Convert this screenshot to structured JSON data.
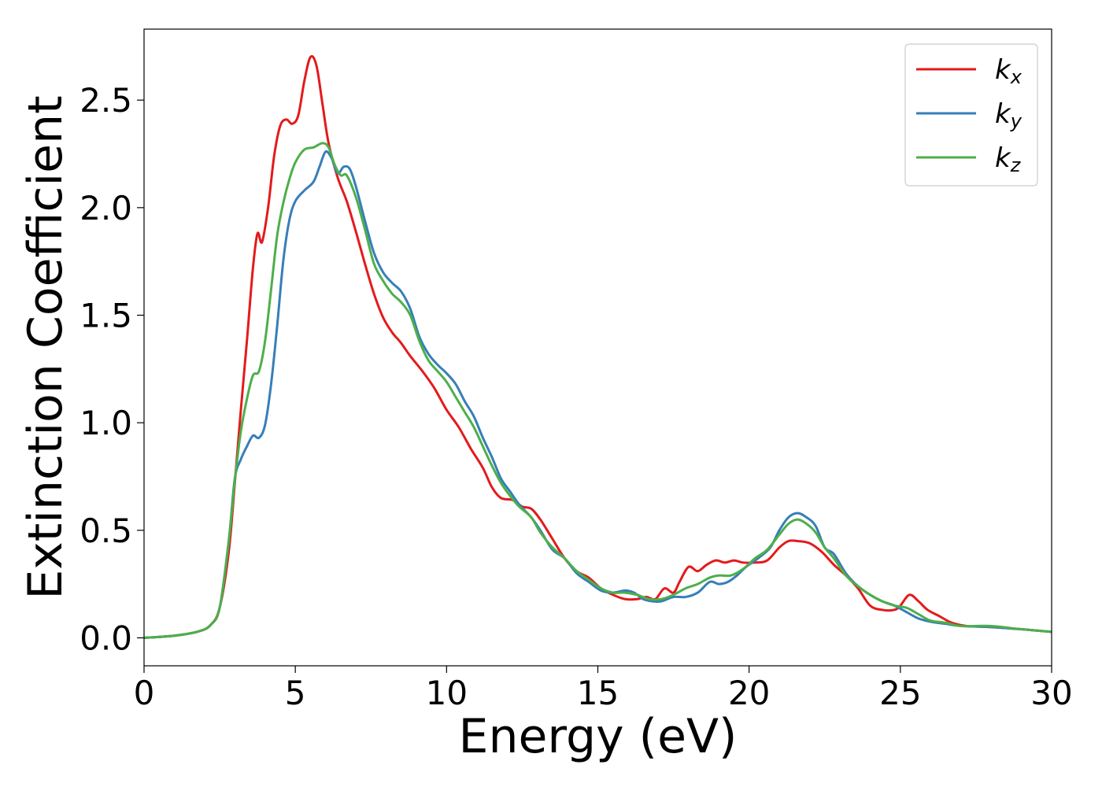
{
  "chart_data": {
    "type": "line",
    "title": "",
    "xlabel": "Energy (eV)",
    "ylabel": "Extinction Coefficient",
    "xlim": [
      0,
      30
    ],
    "ylim": [
      -0.13,
      2.83
    ],
    "xticks": [
      0,
      5,
      10,
      15,
      20,
      25,
      30
    ],
    "xtick_labels": [
      "0",
      "5",
      "10",
      "15",
      "20",
      "25",
      "30"
    ],
    "yticks": [
      0.0,
      0.5,
      1.0,
      1.5,
      2.0,
      2.5
    ],
    "ytick_labels": [
      "0.0",
      "0.5",
      "1.0",
      "1.5",
      "2.0",
      "2.5"
    ],
    "grid": false,
    "legend": {
      "placement": "top-right"
    },
    "series": [
      {
        "name": "k_x",
        "label_main": "k",
        "label_sub": "x",
        "color": "#e41a1c",
        "points": [
          [
            0,
            0
          ],
          [
            1,
            0.01
          ],
          [
            1.8,
            0.03
          ],
          [
            2.2,
            0.06
          ],
          [
            2.5,
            0.14
          ],
          [
            2.8,
            0.4
          ],
          [
            3.0,
            0.72
          ],
          [
            3.2,
            1.06
          ],
          [
            3.4,
            1.38
          ],
          [
            3.6,
            1.72
          ],
          [
            3.75,
            1.88
          ],
          [
            3.9,
            1.84
          ],
          [
            4.1,
            2.0
          ],
          [
            4.3,
            2.24
          ],
          [
            4.5,
            2.38
          ],
          [
            4.7,
            2.41
          ],
          [
            4.9,
            2.39
          ],
          [
            5.1,
            2.43
          ],
          [
            5.3,
            2.59
          ],
          [
            5.5,
            2.7
          ],
          [
            5.7,
            2.66
          ],
          [
            5.9,
            2.48
          ],
          [
            6.1,
            2.3
          ],
          [
            6.4,
            2.14
          ],
          [
            6.7,
            2.03
          ],
          [
            7.0,
            1.89
          ],
          [
            7.3,
            1.74
          ],
          [
            7.6,
            1.6
          ],
          [
            7.9,
            1.49
          ],
          [
            8.2,
            1.42
          ],
          [
            8.5,
            1.37
          ],
          [
            8.8,
            1.31
          ],
          [
            9.2,
            1.24
          ],
          [
            9.6,
            1.16
          ],
          [
            10.0,
            1.06
          ],
          [
            10.4,
            0.98
          ],
          [
            10.8,
            0.88
          ],
          [
            11.2,
            0.79
          ],
          [
            11.5,
            0.7
          ],
          [
            11.8,
            0.65
          ],
          [
            12.2,
            0.64
          ],
          [
            12.5,
            0.61
          ],
          [
            12.8,
            0.6
          ],
          [
            13.1,
            0.55
          ],
          [
            13.5,
            0.46
          ],
          [
            13.9,
            0.37
          ],
          [
            14.3,
            0.31
          ],
          [
            14.7,
            0.28
          ],
          [
            15.1,
            0.23
          ],
          [
            15.5,
            0.2
          ],
          [
            15.9,
            0.18
          ],
          [
            16.3,
            0.18
          ],
          [
            16.6,
            0.19
          ],
          [
            16.9,
            0.18
          ],
          [
            17.2,
            0.23
          ],
          [
            17.5,
            0.21
          ],
          [
            17.7,
            0.26
          ],
          [
            18.0,
            0.33
          ],
          [
            18.3,
            0.31
          ],
          [
            18.6,
            0.34
          ],
          [
            18.9,
            0.36
          ],
          [
            19.2,
            0.35
          ],
          [
            19.5,
            0.36
          ],
          [
            19.8,
            0.35
          ],
          [
            20.2,
            0.35
          ],
          [
            20.6,
            0.36
          ],
          [
            21.0,
            0.42
          ],
          [
            21.3,
            0.45
          ],
          [
            21.6,
            0.45
          ],
          [
            22.0,
            0.44
          ],
          [
            22.4,
            0.4
          ],
          [
            22.8,
            0.34
          ],
          [
            23.2,
            0.29
          ],
          [
            23.6,
            0.23
          ],
          [
            24.0,
            0.15
          ],
          [
            24.4,
            0.13
          ],
          [
            24.8,
            0.13
          ],
          [
            25.0,
            0.15
          ],
          [
            25.3,
            0.2
          ],
          [
            25.6,
            0.17
          ],
          [
            25.9,
            0.13
          ],
          [
            26.3,
            0.1
          ],
          [
            26.7,
            0.07
          ],
          [
            27.2,
            0.055
          ],
          [
            28.0,
            0.05
          ],
          [
            29.0,
            0.04
          ],
          [
            30,
            0.028
          ]
        ]
      },
      {
        "name": "k_y",
        "label_main": "k",
        "label_sub": "y",
        "color": "#377eb8",
        "points": [
          [
            0,
            0
          ],
          [
            1,
            0.01
          ],
          [
            1.8,
            0.03
          ],
          [
            2.2,
            0.06
          ],
          [
            2.5,
            0.14
          ],
          [
            2.8,
            0.45
          ],
          [
            3.0,
            0.74
          ],
          [
            3.2,
            0.83
          ],
          [
            3.4,
            0.89
          ],
          [
            3.6,
            0.94
          ],
          [
            3.8,
            0.93
          ],
          [
            4.0,
            0.99
          ],
          [
            4.2,
            1.18
          ],
          [
            4.4,
            1.45
          ],
          [
            4.6,
            1.75
          ],
          [
            4.8,
            1.94
          ],
          [
            5.0,
            2.03
          ],
          [
            5.3,
            2.08
          ],
          [
            5.6,
            2.12
          ],
          [
            5.8,
            2.19
          ],
          [
            6.0,
            2.26
          ],
          [
            6.2,
            2.23
          ],
          [
            6.4,
            2.16
          ],
          [
            6.6,
            2.19
          ],
          [
            6.8,
            2.18
          ],
          [
            7.0,
            2.1
          ],
          [
            7.3,
            1.94
          ],
          [
            7.6,
            1.79
          ],
          [
            7.9,
            1.7
          ],
          [
            8.2,
            1.65
          ],
          [
            8.5,
            1.61
          ],
          [
            8.8,
            1.53
          ],
          [
            9.1,
            1.4
          ],
          [
            9.4,
            1.32
          ],
          [
            9.7,
            1.27
          ],
          [
            10.0,
            1.23
          ],
          [
            10.3,
            1.18
          ],
          [
            10.6,
            1.1
          ],
          [
            10.9,
            1.03
          ],
          [
            11.2,
            0.93
          ],
          [
            11.5,
            0.84
          ],
          [
            11.8,
            0.74
          ],
          [
            12.1,
            0.68
          ],
          [
            12.4,
            0.62
          ],
          [
            12.8,
            0.56
          ],
          [
            13.1,
            0.5
          ],
          [
            13.5,
            0.41
          ],
          [
            13.9,
            0.37
          ],
          [
            14.3,
            0.3
          ],
          [
            14.7,
            0.26
          ],
          [
            15.1,
            0.22
          ],
          [
            15.5,
            0.21
          ],
          [
            15.9,
            0.22
          ],
          [
            16.2,
            0.21
          ],
          [
            16.5,
            0.18
          ],
          [
            16.8,
            0.17
          ],
          [
            17.1,
            0.17
          ],
          [
            17.5,
            0.19
          ],
          [
            17.9,
            0.19
          ],
          [
            18.3,
            0.21
          ],
          [
            18.7,
            0.26
          ],
          [
            19.0,
            0.25
          ],
          [
            19.3,
            0.26
          ],
          [
            19.6,
            0.29
          ],
          [
            19.9,
            0.33
          ],
          [
            20.3,
            0.37
          ],
          [
            20.7,
            0.42
          ],
          [
            21.0,
            0.5
          ],
          [
            21.3,
            0.56
          ],
          [
            21.6,
            0.58
          ],
          [
            21.9,
            0.56
          ],
          [
            22.2,
            0.52
          ],
          [
            22.5,
            0.42
          ],
          [
            22.8,
            0.39
          ],
          [
            23.2,
            0.3
          ],
          [
            23.6,
            0.24
          ],
          [
            24.0,
            0.2
          ],
          [
            24.4,
            0.17
          ],
          [
            24.8,
            0.15
          ],
          [
            25.2,
            0.12
          ],
          [
            25.6,
            0.09
          ],
          [
            26.0,
            0.075
          ],
          [
            26.5,
            0.065
          ],
          [
            27.0,
            0.055
          ],
          [
            28.0,
            0.05
          ],
          [
            29.0,
            0.04
          ],
          [
            30,
            0.028
          ]
        ]
      },
      {
        "name": "k_z",
        "label_main": "k",
        "label_sub": "z",
        "color": "#4daf4a",
        "points": [
          [
            0,
            0
          ],
          [
            1,
            0.01
          ],
          [
            1.8,
            0.03
          ],
          [
            2.2,
            0.06
          ],
          [
            2.5,
            0.14
          ],
          [
            2.8,
            0.45
          ],
          [
            3.0,
            0.73
          ],
          [
            3.2,
            0.96
          ],
          [
            3.4,
            1.11
          ],
          [
            3.6,
            1.22
          ],
          [
            3.8,
            1.24
          ],
          [
            4.0,
            1.38
          ],
          [
            4.2,
            1.62
          ],
          [
            4.4,
            1.87
          ],
          [
            4.6,
            2.02
          ],
          [
            4.8,
            2.13
          ],
          [
            5.0,
            2.21
          ],
          [
            5.3,
            2.27
          ],
          [
            5.6,
            2.28
          ],
          [
            5.9,
            2.3
          ],
          [
            6.1,
            2.28
          ],
          [
            6.3,
            2.2
          ],
          [
            6.5,
            2.15
          ],
          [
            6.7,
            2.15
          ],
          [
            7.0,
            2.05
          ],
          [
            7.3,
            1.9
          ],
          [
            7.6,
            1.74
          ],
          [
            7.9,
            1.66
          ],
          [
            8.2,
            1.6
          ],
          [
            8.5,
            1.56
          ],
          [
            8.8,
            1.5
          ],
          [
            9.1,
            1.38
          ],
          [
            9.4,
            1.29
          ],
          [
            9.7,
            1.24
          ],
          [
            10.0,
            1.19
          ],
          [
            10.3,
            1.12
          ],
          [
            10.6,
            1.05
          ],
          [
            10.9,
            0.98
          ],
          [
            11.2,
            0.89
          ],
          [
            11.5,
            0.8
          ],
          [
            11.8,
            0.72
          ],
          [
            12.1,
            0.66
          ],
          [
            12.4,
            0.61
          ],
          [
            12.8,
            0.56
          ],
          [
            13.1,
            0.49
          ],
          [
            13.5,
            0.42
          ],
          [
            13.9,
            0.37
          ],
          [
            14.3,
            0.31
          ],
          [
            14.7,
            0.27
          ],
          [
            15.1,
            0.23
          ],
          [
            15.5,
            0.21
          ],
          [
            15.9,
            0.21
          ],
          [
            16.3,
            0.2
          ],
          [
            16.7,
            0.18
          ],
          [
            17.1,
            0.18
          ],
          [
            17.5,
            0.2
          ],
          [
            17.9,
            0.23
          ],
          [
            18.3,
            0.25
          ],
          [
            18.7,
            0.28
          ],
          [
            19.0,
            0.29
          ],
          [
            19.4,
            0.29
          ],
          [
            19.8,
            0.32
          ],
          [
            20.2,
            0.37
          ],
          [
            20.6,
            0.41
          ],
          [
            21.0,
            0.48
          ],
          [
            21.3,
            0.53
          ],
          [
            21.6,
            0.55
          ],
          [
            21.9,
            0.53
          ],
          [
            22.2,
            0.49
          ],
          [
            22.5,
            0.42
          ],
          [
            22.8,
            0.37
          ],
          [
            23.2,
            0.29
          ],
          [
            23.6,
            0.24
          ],
          [
            24.0,
            0.2
          ],
          [
            24.4,
            0.17
          ],
          [
            24.8,
            0.15
          ],
          [
            25.2,
            0.14
          ],
          [
            25.6,
            0.11
          ],
          [
            26.0,
            0.08
          ],
          [
            26.5,
            0.07
          ],
          [
            27.0,
            0.055
          ],
          [
            28.0,
            0.055
          ],
          [
            29.0,
            0.04
          ],
          [
            30,
            0.028
          ]
        ]
      }
    ]
  }
}
